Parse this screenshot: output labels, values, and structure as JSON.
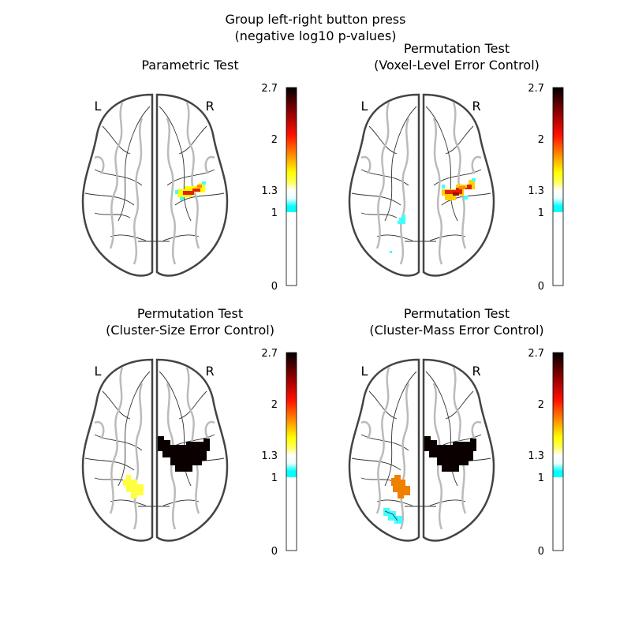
{
  "figure": {
    "title_line1": "Group left-right button press",
    "title_line2": "(negative log10 p-values)"
  },
  "colorbar": {
    "ticks": [
      0,
      1,
      1.3,
      2,
      2.7
    ],
    "tick_labels": [
      "0",
      "1",
      "1.3",
      "2",
      "2.7"
    ],
    "range": [
      0,
      2.7
    ],
    "threshold": 1.0,
    "colormap": [
      "#00ffff",
      "#ffffff",
      "#ffff00",
      "#ff8000",
      "#ff0000",
      "#800000",
      "#000000"
    ]
  },
  "hemisphere_labels": {
    "left": "L",
    "right": "R"
  },
  "chart_data": [
    {
      "type": "heatmap",
      "title_line1": "Parametric Test",
      "title_line2": "",
      "view": "axial glass brain",
      "clusters": [
        {
          "hemisphere": "right",
          "region": "central",
          "peak_value": 2.3,
          "color": "#e62000"
        },
        {
          "hemisphere": "right",
          "region": "central",
          "peak_value": 1.4,
          "color": "#ffff00"
        },
        {
          "hemisphere": "right",
          "region": "central",
          "peak_value": 1.1,
          "color": "#40ffff"
        }
      ]
    },
    {
      "type": "heatmap",
      "title_line1": "Permutation Test",
      "title_line2": "(Voxel-Level Error Control)",
      "view": "axial glass brain",
      "clusters": [
        {
          "hemisphere": "right",
          "region": "central",
          "peak_value": 2.3,
          "color": "#e62000"
        },
        {
          "hemisphere": "right",
          "region": "central",
          "peak_value": 1.6,
          "color": "#ffcc00"
        },
        {
          "hemisphere": "right",
          "region": "central",
          "peak_value": 1.1,
          "color": "#40ffff"
        },
        {
          "hemisphere": "left",
          "region": "parietal",
          "peak_value": 1.1,
          "color": "#40ffff"
        }
      ]
    },
    {
      "type": "heatmap",
      "title_line1": "Permutation Test",
      "title_line2": "(Cluster-Size Error Control)",
      "view": "axial glass brain",
      "clusters": [
        {
          "hemisphere": "right",
          "region": "central",
          "peak_value": 2.7,
          "color": "#0a0000"
        },
        {
          "hemisphere": "left",
          "region": "parietal",
          "peak_value": 1.4,
          "color": "#ffff40"
        }
      ]
    },
    {
      "type": "heatmap",
      "title_line1": "Permutation Test",
      "title_line2": "(Cluster-Mass Error Control)",
      "view": "axial glass brain",
      "clusters": [
        {
          "hemisphere": "right",
          "region": "central",
          "peak_value": 2.7,
          "color": "#0a0000"
        },
        {
          "hemisphere": "left",
          "region": "parietal",
          "peak_value": 1.7,
          "color": "#f08000"
        },
        {
          "hemisphere": "left",
          "region": "occipital",
          "peak_value": 1.1,
          "color": "#40ffff"
        }
      ]
    }
  ]
}
